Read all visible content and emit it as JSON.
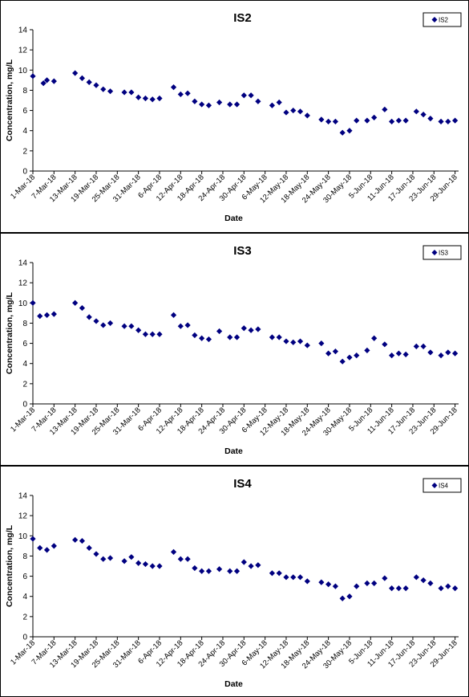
{
  "chart_data": [
    {
      "type": "scatter",
      "title": "IS2",
      "xlabel": "Date",
      "ylabel": "Concentration, mg/L",
      "ylim": [
        0,
        14
      ],
      "yticks": [
        0,
        2,
        4,
        6,
        8,
        10,
        12,
        14
      ],
      "xlim": [
        "2018-03-01",
        "2018-06-30"
      ],
      "xtick_labels": [
        "1-Mar-18",
        "7-Mar-18",
        "13-Mar-18",
        "19-Mar-18",
        "25-Mar-18",
        "31-Mar-18",
        "6-Apr-18",
        "12-Apr-18",
        "18-Apr-18",
        "24-Apr-18",
        "30-Apr-18",
        "6-May-18",
        "12-May-18",
        "18-May-18",
        "24-May-18",
        "30-May-18",
        "5-Jun-18",
        "11-Jun-18",
        "17-Jun-18",
        "23-Jun-18",
        "29-Jun-18"
      ],
      "legend": "top-right",
      "grid": false,
      "color": "#000080",
      "series": [
        {
          "name": "IS2",
          "points": [
            [
              "2018-03-01",
              9.4
            ],
            [
              "2018-03-04",
              8.7
            ],
            [
              "2018-03-05",
              9.0
            ],
            [
              "2018-03-07",
              8.9
            ],
            [
              "2018-03-13",
              9.7
            ],
            [
              "2018-03-15",
              9.2
            ],
            [
              "2018-03-17",
              8.8
            ],
            [
              "2018-03-19",
              8.5
            ],
            [
              "2018-03-21",
              8.1
            ],
            [
              "2018-03-23",
              7.9
            ],
            [
              "2018-03-27",
              7.8
            ],
            [
              "2018-03-29",
              7.8
            ],
            [
              "2018-03-31",
              7.3
            ],
            [
              "2018-04-02",
              7.2
            ],
            [
              "2018-04-04",
              7.1
            ],
            [
              "2018-04-06",
              7.2
            ],
            [
              "2018-04-10",
              8.3
            ],
            [
              "2018-04-12",
              7.6
            ],
            [
              "2018-04-14",
              7.7
            ],
            [
              "2018-04-16",
              6.9
            ],
            [
              "2018-04-18",
              6.6
            ],
            [
              "2018-04-20",
              6.5
            ],
            [
              "2018-04-23",
              6.8
            ],
            [
              "2018-04-26",
              6.6
            ],
            [
              "2018-04-28",
              6.6
            ],
            [
              "2018-04-30",
              7.5
            ],
            [
              "2018-05-02",
              7.5
            ],
            [
              "2018-05-04",
              6.9
            ],
            [
              "2018-05-08",
              6.5
            ],
            [
              "2018-05-10",
              6.8
            ],
            [
              "2018-05-12",
              5.8
            ],
            [
              "2018-05-14",
              6.0
            ],
            [
              "2018-05-16",
              5.9
            ],
            [
              "2018-05-18",
              5.5
            ],
            [
              "2018-05-22",
              5.1
            ],
            [
              "2018-05-24",
              4.9
            ],
            [
              "2018-05-26",
              4.9
            ],
            [
              "2018-05-28",
              3.8
            ],
            [
              "2018-05-30",
              4.0
            ],
            [
              "2018-06-01",
              5.0
            ],
            [
              "2018-06-04",
              5.0
            ],
            [
              "2018-06-06",
              5.3
            ],
            [
              "2018-06-09",
              6.1
            ],
            [
              "2018-06-11",
              4.9
            ],
            [
              "2018-06-13",
              5.0
            ],
            [
              "2018-06-15",
              5.0
            ],
            [
              "2018-06-18",
              5.9
            ],
            [
              "2018-06-20",
              5.6
            ],
            [
              "2018-06-22",
              5.2
            ],
            [
              "2018-06-25",
              4.9
            ],
            [
              "2018-06-27",
              4.9
            ],
            [
              "2018-06-29",
              5.0
            ]
          ]
        }
      ]
    },
    {
      "type": "scatter",
      "title": "IS3",
      "xlabel": "Date",
      "ylabel": "Concentration, mg/L",
      "ylim": [
        0,
        14
      ],
      "yticks": [
        0,
        2,
        4,
        6,
        8,
        10,
        12,
        14
      ],
      "xlim": [
        "2018-03-01",
        "2018-06-30"
      ],
      "xtick_labels": [
        "1-Mar-18",
        "7-Mar-18",
        "13-Mar-18",
        "19-Mar-18",
        "25-Mar-18",
        "31-Mar-18",
        "6-Apr-18",
        "12-Apr-18",
        "18-Apr-18",
        "24-Apr-18",
        "30-Apr-18",
        "6-May-18",
        "12-May-18",
        "18-May-18",
        "24-May-18",
        "30-May-18",
        "5-Jun-18",
        "11-Jun-18",
        "17-Jun-18",
        "23-Jun-18",
        "29-Jun-18"
      ],
      "legend": "top-right",
      "grid": false,
      "color": "#000080",
      "series": [
        {
          "name": "IS3",
          "points": [
            [
              "2018-03-01",
              10.0
            ],
            [
              "2018-03-03",
              8.7
            ],
            [
              "2018-03-05",
              8.8
            ],
            [
              "2018-03-07",
              8.9
            ],
            [
              "2018-03-13",
              10.0
            ],
            [
              "2018-03-15",
              9.5
            ],
            [
              "2018-03-17",
              8.6
            ],
            [
              "2018-03-19",
              8.2
            ],
            [
              "2018-03-21",
              7.8
            ],
            [
              "2018-03-23",
              8.0
            ],
            [
              "2018-03-27",
              7.7
            ],
            [
              "2018-03-29",
              7.7
            ],
            [
              "2018-03-31",
              7.3
            ],
            [
              "2018-04-02",
              6.9
            ],
            [
              "2018-04-04",
              6.9
            ],
            [
              "2018-04-06",
              6.9
            ],
            [
              "2018-04-10",
              8.8
            ],
            [
              "2018-04-12",
              7.7
            ],
            [
              "2018-04-14",
              7.8
            ],
            [
              "2018-04-16",
              6.8
            ],
            [
              "2018-04-18",
              6.5
            ],
            [
              "2018-04-20",
              6.4
            ],
            [
              "2018-04-23",
              7.2
            ],
            [
              "2018-04-26",
              6.6
            ],
            [
              "2018-04-28",
              6.6
            ],
            [
              "2018-04-30",
              7.5
            ],
            [
              "2018-05-02",
              7.3
            ],
            [
              "2018-05-04",
              7.4
            ],
            [
              "2018-05-08",
              6.6
            ],
            [
              "2018-05-10",
              6.6
            ],
            [
              "2018-05-12",
              6.2
            ],
            [
              "2018-05-14",
              6.1
            ],
            [
              "2018-05-16",
              6.2
            ],
            [
              "2018-05-18",
              5.8
            ],
            [
              "2018-05-22",
              6.0
            ],
            [
              "2018-05-24",
              5.0
            ],
            [
              "2018-05-26",
              5.2
            ],
            [
              "2018-05-28",
              4.2
            ],
            [
              "2018-05-30",
              4.6
            ],
            [
              "2018-06-01",
              4.8
            ],
            [
              "2018-06-04",
              5.3
            ],
            [
              "2018-06-06",
              6.5
            ],
            [
              "2018-06-09",
              5.9
            ],
            [
              "2018-06-11",
              4.8
            ],
            [
              "2018-06-13",
              5.0
            ],
            [
              "2018-06-15",
              4.9
            ],
            [
              "2018-06-18",
              5.7
            ],
            [
              "2018-06-20",
              5.7
            ],
            [
              "2018-06-22",
              5.1
            ],
            [
              "2018-06-25",
              4.8
            ],
            [
              "2018-06-27",
              5.1
            ],
            [
              "2018-06-29",
              5.0
            ]
          ]
        }
      ]
    },
    {
      "type": "scatter",
      "title": "IS4",
      "xlabel": "Date",
      "ylabel": "Concentration, mg/L",
      "ylim": [
        0,
        14
      ],
      "yticks": [
        0,
        2,
        4,
        6,
        8,
        10,
        12,
        14
      ],
      "xlim": [
        "2018-03-01",
        "2018-06-30"
      ],
      "xtick_labels": [
        "1-Mar-18",
        "7-Mar-18",
        "13-Mar-18",
        "19-Mar-18",
        "25-Mar-18",
        "31-Mar-18",
        "6-Apr-18",
        "12-Apr-18",
        "18-Apr-18",
        "24-Apr-18",
        "30-Apr-18",
        "6-May-18",
        "12-May-18",
        "18-May-18",
        "24-May-18",
        "30-May-18",
        "5-Jun-18",
        "11-Jun-18",
        "17-Jun-18",
        "23-Jun-18",
        "29-Jun-18"
      ],
      "legend": "top-right",
      "grid": false,
      "color": "#000080",
      "series": [
        {
          "name": "IS4",
          "points": [
            [
              "2018-03-01",
              9.7
            ],
            [
              "2018-03-03",
              8.8
            ],
            [
              "2018-03-05",
              8.6
            ],
            [
              "2018-03-07",
              9.0
            ],
            [
              "2018-03-13",
              9.6
            ],
            [
              "2018-03-15",
              9.5
            ],
            [
              "2018-03-17",
              8.8
            ],
            [
              "2018-03-19",
              8.2
            ],
            [
              "2018-03-21",
              7.7
            ],
            [
              "2018-03-23",
              7.8
            ],
            [
              "2018-03-27",
              7.5
            ],
            [
              "2018-03-29",
              7.9
            ],
            [
              "2018-03-31",
              7.3
            ],
            [
              "2018-04-02",
              7.2
            ],
            [
              "2018-04-04",
              7.0
            ],
            [
              "2018-04-06",
              7.0
            ],
            [
              "2018-04-10",
              8.4
            ],
            [
              "2018-04-12",
              7.7
            ],
            [
              "2018-04-14",
              7.7
            ],
            [
              "2018-04-16",
              6.8
            ],
            [
              "2018-04-18",
              6.5
            ],
            [
              "2018-04-20",
              6.5
            ],
            [
              "2018-04-23",
              6.7
            ],
            [
              "2018-04-26",
              6.5
            ],
            [
              "2018-04-28",
              6.5
            ],
            [
              "2018-04-30",
              7.4
            ],
            [
              "2018-05-02",
              7.0
            ],
            [
              "2018-05-04",
              7.1
            ],
            [
              "2018-05-08",
              6.3
            ],
            [
              "2018-05-10",
              6.3
            ],
            [
              "2018-05-12",
              5.9
            ],
            [
              "2018-05-14",
              5.9
            ],
            [
              "2018-05-16",
              5.9
            ],
            [
              "2018-05-18",
              5.5
            ],
            [
              "2018-05-22",
              5.4
            ],
            [
              "2018-05-24",
              5.2
            ],
            [
              "2018-05-26",
              5.0
            ],
            [
              "2018-05-28",
              3.8
            ],
            [
              "2018-05-30",
              4.0
            ],
            [
              "2018-06-01",
              5.0
            ],
            [
              "2018-06-04",
              5.3
            ],
            [
              "2018-06-06",
              5.3
            ],
            [
              "2018-06-09",
              5.8
            ],
            [
              "2018-06-11",
              4.8
            ],
            [
              "2018-06-13",
              4.8
            ],
            [
              "2018-06-15",
              4.8
            ],
            [
              "2018-06-18",
              5.9
            ],
            [
              "2018-06-20",
              5.6
            ],
            [
              "2018-06-22",
              5.3
            ],
            [
              "2018-06-25",
              4.8
            ],
            [
              "2018-06-27",
              5.0
            ],
            [
              "2018-06-29",
              4.8
            ]
          ]
        }
      ]
    }
  ]
}
